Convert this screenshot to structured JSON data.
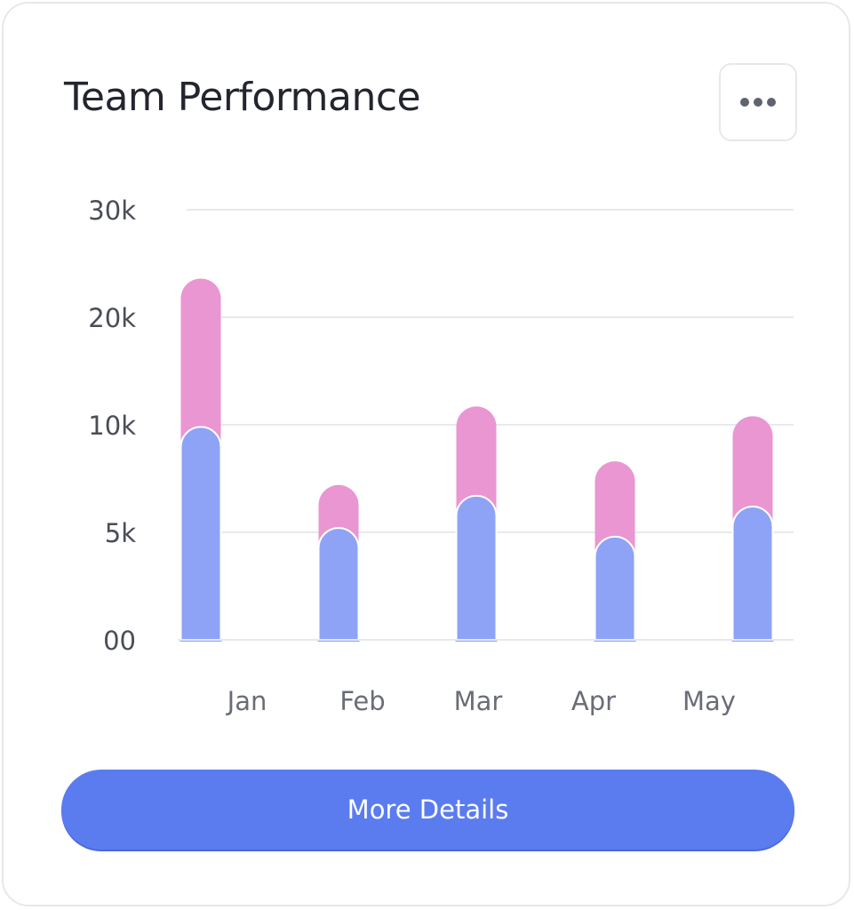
{
  "card": {
    "title": "Team Performance",
    "menu_icon": "more-horizontal-icon",
    "button_label": "More Details"
  },
  "colors": {
    "bottom_series": "#8ea3f5",
    "top_series": "#e996d2",
    "button": "#5b7cef",
    "grid": "#e8e9ec"
  },
  "chart_data": {
    "type": "bar",
    "stacked": true,
    "categories": [
      "Jan",
      "Feb",
      "Mar",
      "Apr",
      "May"
    ],
    "y_ticks": [
      {
        "label": "00",
        "value": 0
      },
      {
        "label": "5k",
        "value": 5000
      },
      {
        "label": "10k",
        "value": 10000
      },
      {
        "label": "20k",
        "value": 20000
      },
      {
        "label": "30k",
        "value": 30000
      }
    ],
    "series": [
      {
        "values": [
          9900,
          5200,
          6700,
          4800,
          6200
        ]
      },
      {
        "values": [
          13700,
          2000,
          5000,
          3500,
          4600
        ]
      }
    ],
    "ylim": [
      0,
      30000
    ],
    "grid": true,
    "legend": "none"
  }
}
